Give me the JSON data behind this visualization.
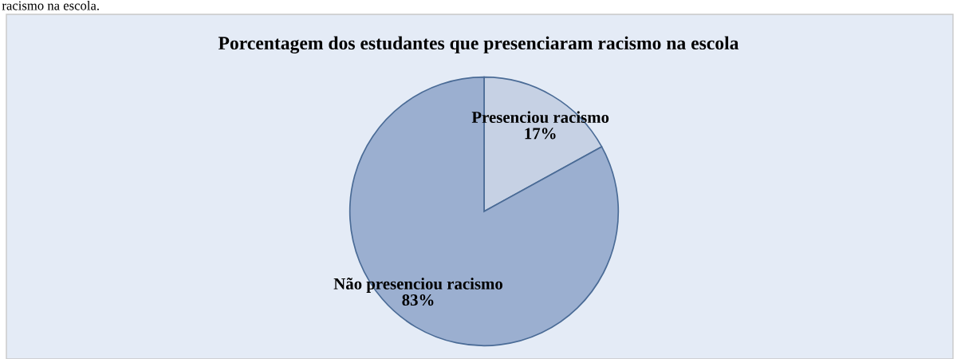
{
  "chart_data": {
    "type": "pie",
    "title": "Porcentagem dos estudantes que presenciaram racismo na escola",
    "categories": [
      "Presenciou racismo",
      "Não presenciou racismo"
    ],
    "values": [
      17,
      83
    ],
    "colors": [
      "#c6d1e4",
      "#9bafd0"
    ],
    "value_labels": [
      "17%",
      "83%"
    ],
    "legend": false,
    "annotations": [
      "racismo na escola."
    ]
  }
}
